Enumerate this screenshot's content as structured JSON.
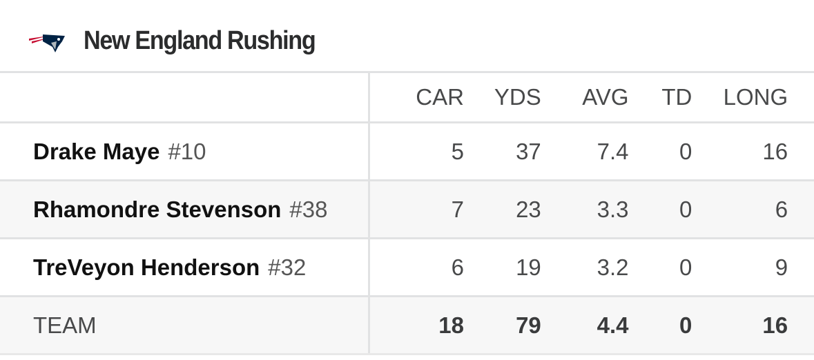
{
  "title": "New England Rushing",
  "columns": [
    "CAR",
    "YDS",
    "AVG",
    "TD",
    "LONG"
  ],
  "rows": [
    {
      "name": "Drake Maye",
      "jersey": "#10",
      "stats": [
        "5",
        "37",
        "7.4",
        "0",
        "16"
      ]
    },
    {
      "name": "Rhamondre Stevenson",
      "jersey": "#38",
      "stats": [
        "7",
        "23",
        "3.3",
        "0",
        "6"
      ]
    },
    {
      "name": "TreVeyon Henderson",
      "jersey": "#32",
      "stats": [
        "6",
        "19",
        "3.2",
        "0",
        "9"
      ]
    }
  ],
  "team": {
    "label": "TEAM",
    "stats": [
      "18",
      "79",
      "4.4",
      "0",
      "16"
    ]
  },
  "colors": {
    "navy": "#002244",
    "red": "#c60c30",
    "silver": "#b0b7bc"
  }
}
